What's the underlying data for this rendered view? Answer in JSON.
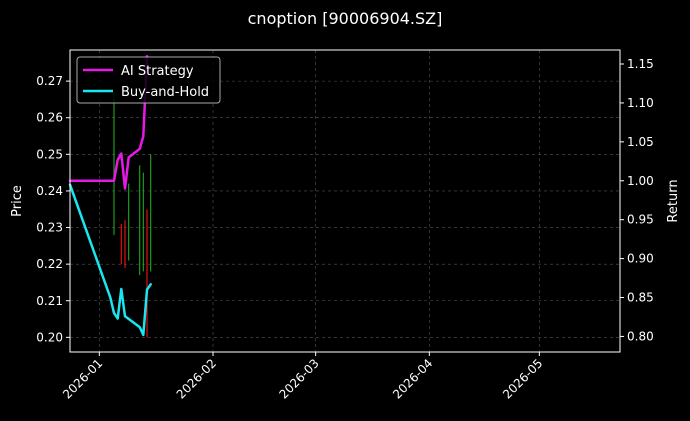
{
  "chart_data": {
    "type": "line",
    "title": "cnoption [90006904.SZ]",
    "left_axis": {
      "label": "Price",
      "ylim": [
        0.196,
        0.2785
      ],
      "ticks": [
        "0.20",
        "0.21",
        "0.22",
        "0.23",
        "0.24",
        "0.25",
        "0.26",
        "0.27"
      ]
    },
    "right_axis": {
      "label": "Return",
      "ylim": [
        0.78,
        1.168
      ],
      "ticks": [
        "0.80",
        "0.85",
        "0.90",
        "0.95",
        "1.00",
        "1.05",
        "1.10",
        "1.15"
      ]
    },
    "x_axis": {
      "type": "date",
      "xlim": [
        "2025-12-24",
        "2026-05-23"
      ],
      "ticks": [
        "2026-01",
        "2026-02",
        "2026-03",
        "2026-04",
        "2026-05"
      ],
      "tick_dates": [
        "2026-01-01",
        "2026-02-01",
        "2026-03-01",
        "2026-04-01",
        "2026-05-01"
      ]
    },
    "grid": true,
    "legend_position": "top-left",
    "series": [
      {
        "name": "AI Strategy",
        "axis": "right",
        "color": "#e619e6",
        "points": [
          [
            "2025-12-24",
            1.0
          ],
          [
            "2026-01-05",
            1.0
          ],
          [
            "2026-01-06",
            1.027
          ],
          [
            "2026-01-07",
            1.035
          ],
          [
            "2026-01-08",
            0.99
          ],
          [
            "2026-01-09",
            1.03
          ],
          [
            "2026-01-12",
            1.041
          ],
          [
            "2026-01-13",
            1.057
          ],
          [
            "2026-01-14",
            1.16
          ]
        ]
      },
      {
        "name": "Buy-and-Hold",
        "axis": "right",
        "color": "#19e6f0",
        "points": [
          [
            "2025-12-24",
            0.995
          ],
          [
            "2026-01-04",
            0.85
          ],
          [
            "2026-01-05",
            0.83
          ],
          [
            "2026-01-06",
            0.823
          ],
          [
            "2026-01-07",
            0.861
          ],
          [
            "2026-01-08",
            0.826
          ],
          [
            "2026-01-12",
            0.812
          ],
          [
            "2026-01-13",
            0.802
          ],
          [
            "2026-01-14",
            0.86
          ],
          [
            "2026-01-15",
            0.867
          ]
        ]
      }
    ],
    "candles": [
      {
        "date": "2026-01-05",
        "low": 0.228,
        "high": 0.267,
        "direction": "up"
      },
      {
        "date": "2026-01-07",
        "low": 0.22,
        "high": 0.231,
        "direction": "down"
      },
      {
        "date": "2026-01-08",
        "low": 0.219,
        "high": 0.232,
        "direction": "down"
      },
      {
        "date": "2026-01-09",
        "low": 0.221,
        "high": 0.242,
        "direction": "up"
      },
      {
        "date": "2026-01-12",
        "low": 0.217,
        "high": 0.247,
        "direction": "up"
      },
      {
        "date": "2026-01-13",
        "low": 0.218,
        "high": 0.245,
        "direction": "up"
      },
      {
        "date": "2026-01-14",
        "low": 0.2,
        "high": 0.235,
        "direction": "down"
      },
      {
        "date": "2026-01-15",
        "low": 0.218,
        "high": 0.25,
        "direction": "up"
      }
    ],
    "colors": {
      "background": "#000000",
      "up": "#1f9a1f",
      "down": "#e01010",
      "axis": "#ffffff",
      "grid": "#555555"
    }
  }
}
